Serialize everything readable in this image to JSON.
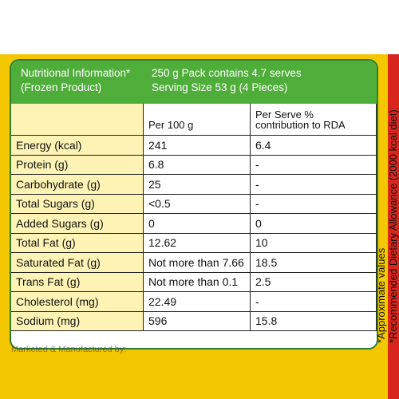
{
  "header": {
    "title": "Nutritional Information*",
    "subtitle": "(Frozen Product)",
    "pack_info": "250 g Pack contains 4.7 serves",
    "serving_size": "Serving Size  53 g (4 Pieces)"
  },
  "columns": {
    "per100": "Per 100 g",
    "per_serve_line1": "Per Serve %",
    "per_serve_line2": "contribution to RDA"
  },
  "rows": [
    {
      "name": "Energy (kcal)",
      "per100": "241",
      "rda": "6.4"
    },
    {
      "name": "Protein (g)",
      "per100": "6.8",
      "rda": "-"
    },
    {
      "name": "Carbohydrate (g)",
      "per100": "25",
      "rda": "-"
    },
    {
      "name": "Total Sugars (g)",
      "per100": "<0.5",
      "rda": "-"
    },
    {
      "name": "Added Sugars (g)",
      "per100": "0",
      "rda": "0"
    },
    {
      "name": "Total Fat (g)",
      "per100": "12.62",
      "rda": "10"
    },
    {
      "name": "Saturated Fat (g)",
      "per100": "Not more than 7.66",
      "rda": "18.5"
    },
    {
      "name": "Trans Fat (g)",
      "per100": "Not more than 0.1",
      "rda": "2.5"
    },
    {
      "name": "Cholesterol (mg)",
      "per100": "22.49",
      "rda": "-"
    },
    {
      "name": "Sodium (mg)",
      "per100": "596",
      "rda": "15.8"
    }
  ],
  "notes": {
    "line1": "*Approximate values",
    "line2": "*Recommended Dietary Allowance (2000 kcal diet)"
  },
  "footer": "Marketed & Manufactured by:"
}
